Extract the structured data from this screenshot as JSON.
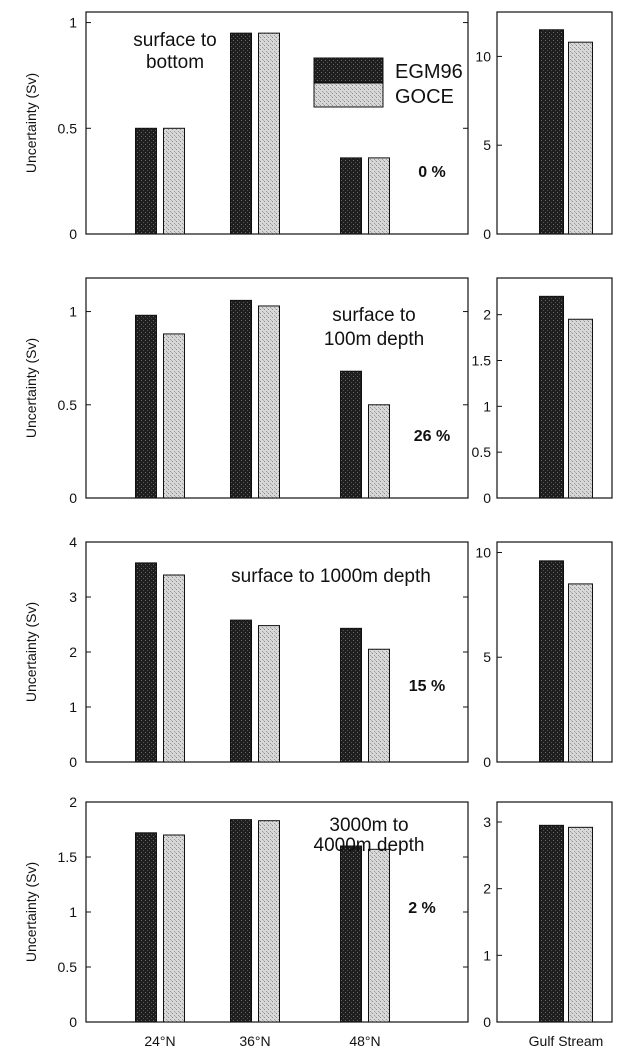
{
  "chart_data": {
    "type": "bar",
    "series_names": [
      "EGM96",
      "GOCE"
    ],
    "series_colors": {
      "EGM96": "#1e1e1e",
      "GOCE": "#c9c9c9"
    },
    "categories": [
      "24°N",
      "36°N",
      "48°N"
    ],
    "right_category": "Gulf Stream",
    "ylabel": "Uncertainty (Sv)",
    "legend": {
      "location": "top-right of first panel",
      "entries": [
        "EGM96",
        "GOCE"
      ]
    },
    "panels": [
      {
        "annotation": [
          "surface to",
          "bottom"
        ],
        "reduction": "0 %",
        "ylim": [
          0,
          1.05
        ],
        "yticks": [
          0,
          0.5,
          1
        ],
        "ytick_labels": [
          "0",
          "0.5",
          "1"
        ],
        "series": [
          {
            "name": "EGM96",
            "values": [
              0.5,
              0.95,
              0.36
            ]
          },
          {
            "name": "GOCE",
            "values": [
              0.5,
              0.95,
              0.36
            ]
          }
        ],
        "gulf_stream": {
          "ylim": [
            0,
            12.5
          ],
          "yticks": [
            0,
            5,
            10
          ],
          "ytick_labels": [
            "0",
            "5",
            "10"
          ],
          "values": {
            "EGM96": 11.5,
            "GOCE": 10.8
          }
        }
      },
      {
        "annotation": [
          "surface to",
          "100m depth"
        ],
        "reduction": "26 %",
        "ylim": [
          0,
          1.18
        ],
        "yticks": [
          0,
          0.5,
          1
        ],
        "ytick_labels": [
          "0",
          "0.5",
          "1"
        ],
        "series": [
          {
            "name": "EGM96",
            "values": [
              0.98,
              1.06,
              0.68
            ]
          },
          {
            "name": "GOCE",
            "values": [
              0.88,
              1.03,
              0.5
            ]
          }
        ],
        "gulf_stream": {
          "ylim": [
            0,
            2.4
          ],
          "yticks": [
            0,
            0.5,
            1,
            1.5,
            2
          ],
          "ytick_labels": [
            "0",
            "0.5",
            "1",
            "1.5",
            "2"
          ],
          "values": {
            "EGM96": 2.2,
            "GOCE": 1.95
          }
        }
      },
      {
        "annotation": [
          "surface to 1000m depth"
        ],
        "reduction": "15 %",
        "ylim": [
          0,
          4
        ],
        "yticks": [
          0,
          1,
          2,
          3,
          4
        ],
        "ytick_labels": [
          "0",
          "1",
          "2",
          "3",
          "4"
        ],
        "series": [
          {
            "name": "EGM96",
            "values": [
              3.62,
              2.58,
              2.43
            ]
          },
          {
            "name": "GOCE",
            "values": [
              3.4,
              2.48,
              2.05
            ]
          }
        ],
        "gulf_stream": {
          "ylim": [
            0,
            10.5
          ],
          "yticks": [
            0,
            5,
            10
          ],
          "ytick_labels": [
            "0",
            "5",
            "10"
          ],
          "values": {
            "EGM96": 9.6,
            "GOCE": 8.5
          }
        }
      },
      {
        "annotation": [
          "3000m   to",
          "4000m depth"
        ],
        "reduction": "2 %",
        "ylim": [
          0,
          2
        ],
        "yticks": [
          0,
          0.5,
          1,
          1.5,
          2
        ],
        "ytick_labels": [
          "0",
          "0.5",
          "1",
          "1.5",
          "2"
        ],
        "series": [
          {
            "name": "EGM96",
            "values": [
              1.72,
              1.84,
              1.6
            ]
          },
          {
            "name": "GOCE",
            "values": [
              1.7,
              1.83,
              1.57
            ]
          }
        ],
        "gulf_stream": {
          "ylim": [
            0,
            3.3
          ],
          "yticks": [
            0,
            1,
            2,
            3
          ],
          "ytick_labels": [
            "0",
            "1",
            "2",
            "3"
          ],
          "values": {
            "EGM96": 2.95,
            "GOCE": 2.92
          }
        }
      }
    ]
  }
}
